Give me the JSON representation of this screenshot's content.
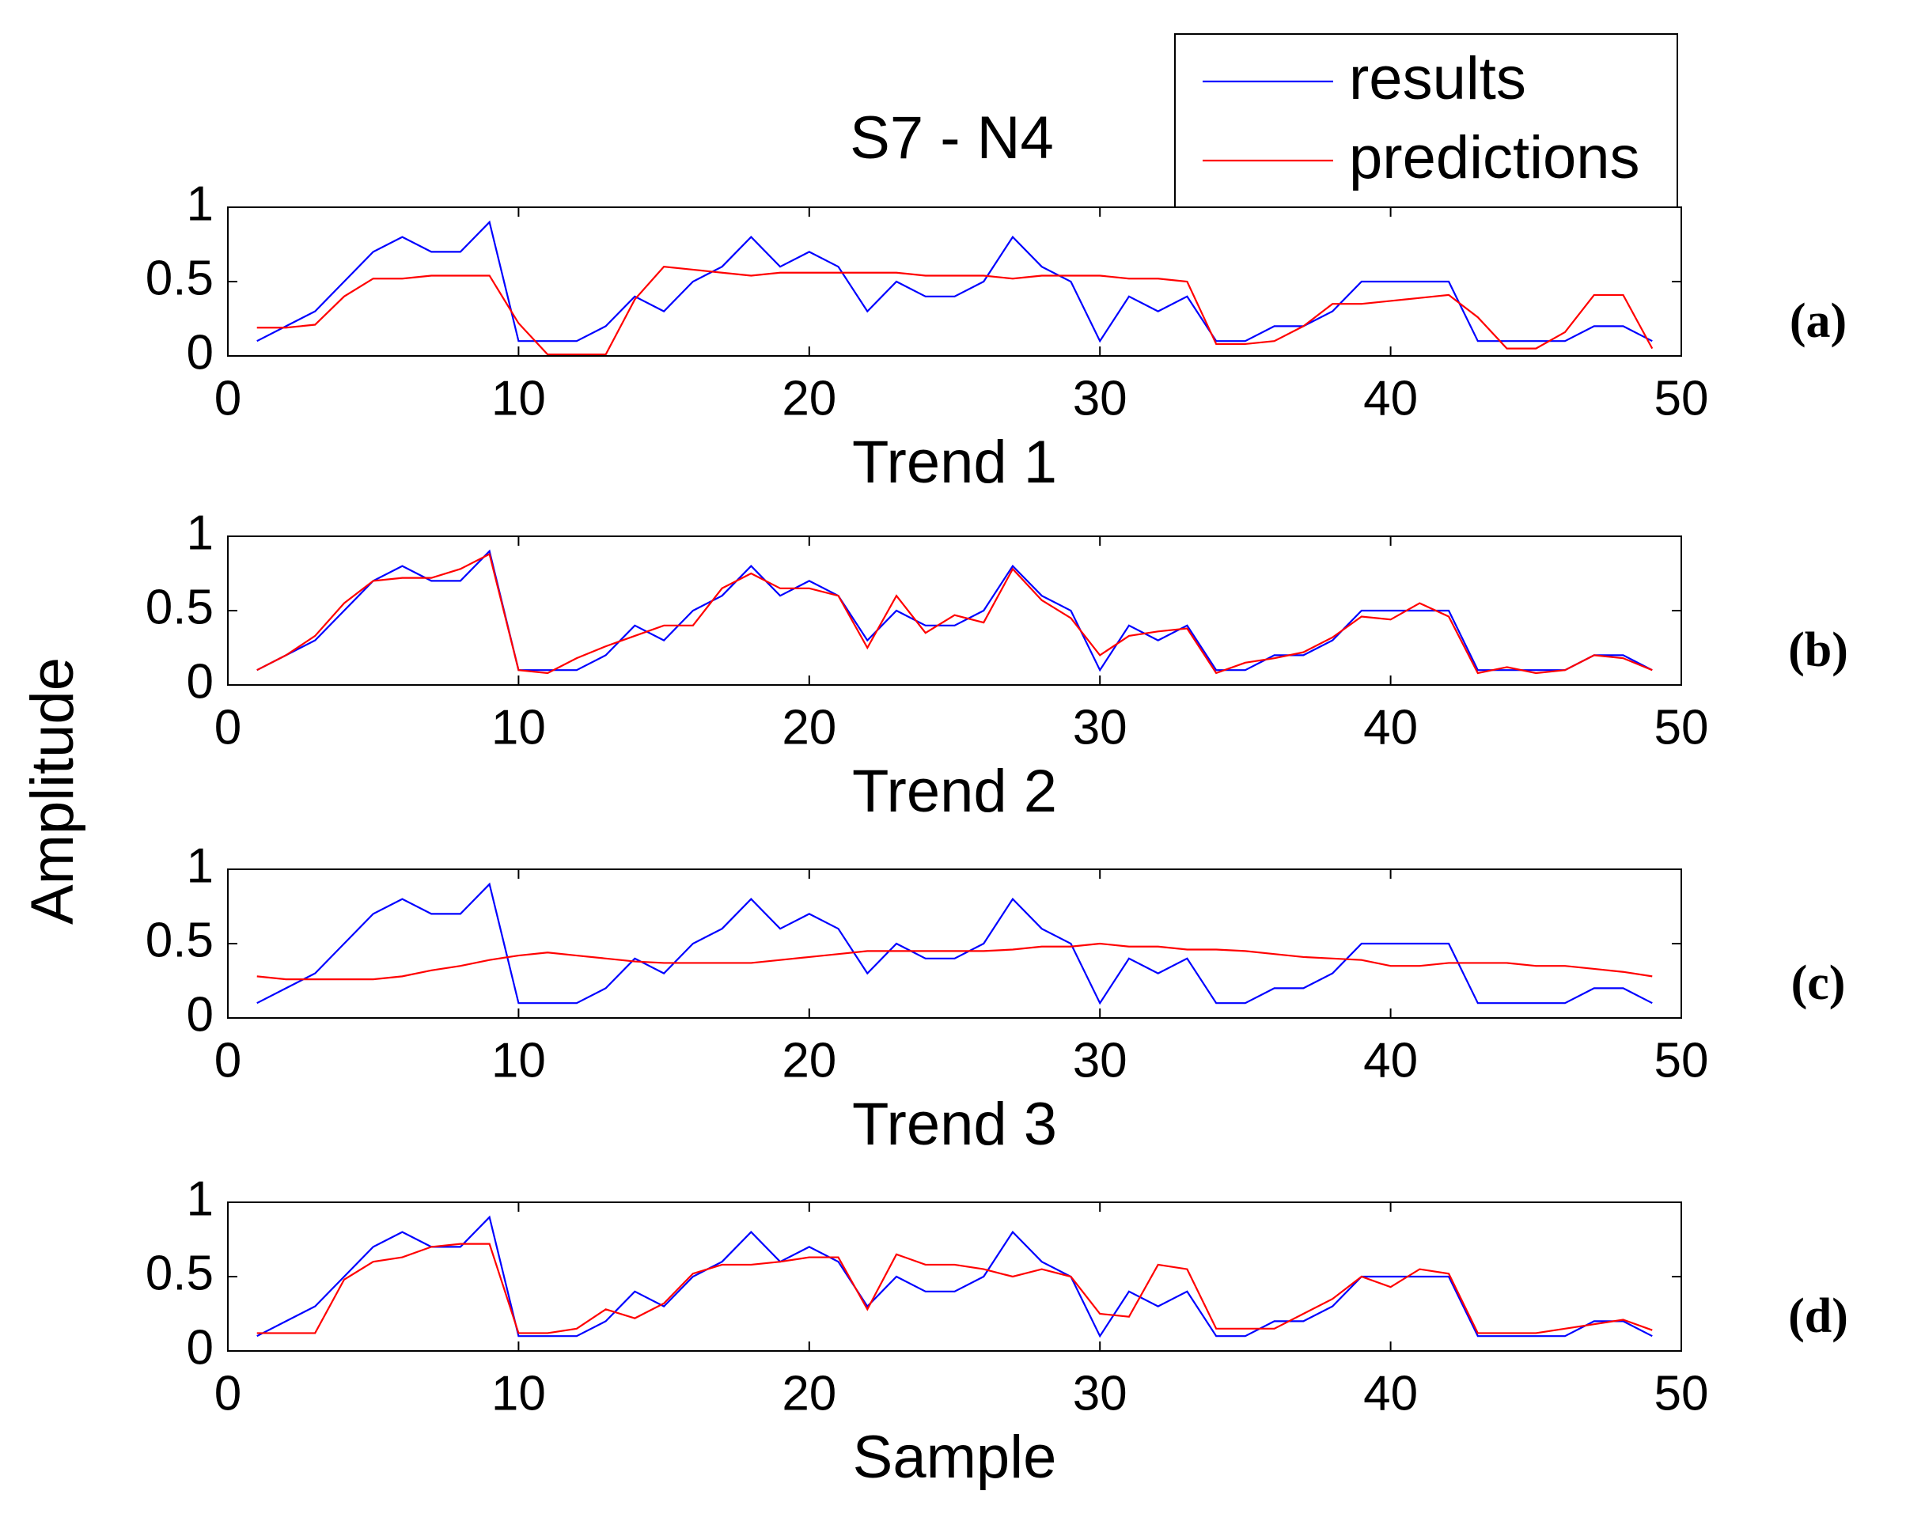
{
  "title": "S7 - N4",
  "ylabel": "Amplitude",
  "chart_data": [
    {
      "type": "line",
      "panel_label": "(a)",
      "xlabel": "Trend 1",
      "legend": "top-right",
      "grid": false,
      "x": [
        1,
        2,
        3,
        4,
        5,
        6,
        7,
        8,
        9,
        10,
        11,
        12,
        13,
        14,
        15,
        16,
        17,
        18,
        19,
        20,
        21,
        22,
        23,
        24,
        25,
        26,
        27,
        28,
        29,
        30,
        31,
        32,
        33,
        34,
        35,
        36,
        37,
        38,
        39,
        40,
        41,
        42,
        43,
        44,
        45,
        46,
        47,
        48,
        49
      ],
      "xlim": [
        0,
        50
      ],
      "xticks": [
        0,
        10,
        20,
        30,
        40,
        50
      ],
      "ylim": [
        0,
        1
      ],
      "yticks": [
        0,
        0.5,
        1
      ],
      "series": [
        {
          "name": "results",
          "color": "#0000ff",
          "values": [
            0.1,
            0.2,
            0.3,
            0.5,
            0.7,
            0.8,
            0.7,
            0.7,
            0.9,
            0.1,
            0.1,
            0.1,
            0.2,
            0.4,
            0.3,
            0.5,
            0.6,
            0.8,
            0.6,
            0.7,
            0.6,
            0.3,
            0.5,
            0.4,
            0.4,
            0.5,
            0.8,
            0.6,
            0.5,
            0.1,
            0.4,
            0.3,
            0.4,
            0.1,
            0.1,
            0.2,
            0.2,
            0.3,
            0.5,
            0.5,
            0.5,
            0.5,
            0.1,
            0.1,
            0.1,
            0.1,
            0.2,
            0.2,
            0.1
          ]
        },
        {
          "name": "predictions",
          "color": "#ff0000",
          "values": [
            0.19,
            0.19,
            0.21,
            0.4,
            0.52,
            0.52,
            0.54,
            0.54,
            0.54,
            0.22,
            0.01,
            0.01,
            0.01,
            0.38,
            0.6,
            0.58,
            0.56,
            0.54,
            0.56,
            0.56,
            0.56,
            0.56,
            0.56,
            0.54,
            0.54,
            0.54,
            0.52,
            0.54,
            0.54,
            0.54,
            0.52,
            0.52,
            0.5,
            0.08,
            0.08,
            0.1,
            0.2,
            0.35,
            0.35,
            0.37,
            0.39,
            0.41,
            0.26,
            0.05,
            0.05,
            0.16,
            0.41,
            0.41,
            0.05
          ]
        }
      ]
    },
    {
      "type": "line",
      "panel_label": "(b)",
      "xlabel": "Trend 2",
      "grid": false,
      "x": [
        1,
        2,
        3,
        4,
        5,
        6,
        7,
        8,
        9,
        10,
        11,
        12,
        13,
        14,
        15,
        16,
        17,
        18,
        19,
        20,
        21,
        22,
        23,
        24,
        25,
        26,
        27,
        28,
        29,
        30,
        31,
        32,
        33,
        34,
        35,
        36,
        37,
        38,
        39,
        40,
        41,
        42,
        43,
        44,
        45,
        46,
        47,
        48,
        49
      ],
      "xlim": [
        0,
        50
      ],
      "xticks": [
        0,
        10,
        20,
        30,
        40,
        50
      ],
      "ylim": [
        0,
        1
      ],
      "yticks": [
        0,
        0.5,
        1
      ],
      "series": [
        {
          "name": "results",
          "color": "#0000ff",
          "values": [
            0.1,
            0.2,
            0.3,
            0.5,
            0.7,
            0.8,
            0.7,
            0.7,
            0.9,
            0.1,
            0.1,
            0.1,
            0.2,
            0.4,
            0.3,
            0.5,
            0.6,
            0.8,
            0.6,
            0.7,
            0.6,
            0.3,
            0.5,
            0.4,
            0.4,
            0.5,
            0.8,
            0.6,
            0.5,
            0.1,
            0.4,
            0.3,
            0.4,
            0.1,
            0.1,
            0.2,
            0.2,
            0.3,
            0.5,
            0.5,
            0.5,
            0.5,
            0.1,
            0.1,
            0.1,
            0.1,
            0.2,
            0.2,
            0.1
          ]
        },
        {
          "name": "predictions",
          "color": "#ff0000",
          "values": [
            0.1,
            0.2,
            0.33,
            0.55,
            0.7,
            0.72,
            0.72,
            0.78,
            0.88,
            0.1,
            0.08,
            0.18,
            0.26,
            0.33,
            0.4,
            0.4,
            0.65,
            0.75,
            0.65,
            0.65,
            0.6,
            0.25,
            0.6,
            0.35,
            0.47,
            0.42,
            0.78,
            0.57,
            0.45,
            0.2,
            0.33,
            0.36,
            0.38,
            0.08,
            0.15,
            0.18,
            0.22,
            0.32,
            0.46,
            0.44,
            0.55,
            0.46,
            0.08,
            0.12,
            0.08,
            0.1,
            0.2,
            0.18,
            0.1
          ]
        }
      ]
    },
    {
      "type": "line",
      "panel_label": "(c)",
      "xlabel": "Trend 3",
      "grid": false,
      "x": [
        1,
        2,
        3,
        4,
        5,
        6,
        7,
        8,
        9,
        10,
        11,
        12,
        13,
        14,
        15,
        16,
        17,
        18,
        19,
        20,
        21,
        22,
        23,
        24,
        25,
        26,
        27,
        28,
        29,
        30,
        31,
        32,
        33,
        34,
        35,
        36,
        37,
        38,
        39,
        40,
        41,
        42,
        43,
        44,
        45,
        46,
        47,
        48,
        49
      ],
      "xlim": [
        0,
        50
      ],
      "xticks": [
        0,
        10,
        20,
        30,
        40,
        50
      ],
      "ylim": [
        0,
        1
      ],
      "yticks": [
        0,
        0.5,
        1
      ],
      "series": [
        {
          "name": "results",
          "color": "#0000ff",
          "values": [
            0.1,
            0.2,
            0.3,
            0.5,
            0.7,
            0.8,
            0.7,
            0.7,
            0.9,
            0.1,
            0.1,
            0.1,
            0.2,
            0.4,
            0.3,
            0.5,
            0.6,
            0.8,
            0.6,
            0.7,
            0.6,
            0.3,
            0.5,
            0.4,
            0.4,
            0.5,
            0.8,
            0.6,
            0.5,
            0.1,
            0.4,
            0.3,
            0.4,
            0.1,
            0.1,
            0.2,
            0.2,
            0.3,
            0.5,
            0.5,
            0.5,
            0.5,
            0.1,
            0.1,
            0.1,
            0.1,
            0.2,
            0.2,
            0.1
          ]
        },
        {
          "name": "predictions",
          "color": "#ff0000",
          "values": [
            0.28,
            0.26,
            0.26,
            0.26,
            0.26,
            0.28,
            0.32,
            0.35,
            0.39,
            0.42,
            0.44,
            0.42,
            0.4,
            0.38,
            0.37,
            0.37,
            0.37,
            0.37,
            0.39,
            0.41,
            0.43,
            0.45,
            0.45,
            0.45,
            0.45,
            0.45,
            0.46,
            0.48,
            0.48,
            0.5,
            0.48,
            0.48,
            0.46,
            0.46,
            0.45,
            0.43,
            0.41,
            0.4,
            0.39,
            0.35,
            0.35,
            0.37,
            0.37,
            0.37,
            0.35,
            0.35,
            0.33,
            0.31,
            0.28
          ]
        }
      ]
    },
    {
      "type": "line",
      "panel_label": "(d)",
      "xlabel": "Sample",
      "grid": false,
      "x": [
        1,
        2,
        3,
        4,
        5,
        6,
        7,
        8,
        9,
        10,
        11,
        12,
        13,
        14,
        15,
        16,
        17,
        18,
        19,
        20,
        21,
        22,
        23,
        24,
        25,
        26,
        27,
        28,
        29,
        30,
        31,
        32,
        33,
        34,
        35,
        36,
        37,
        38,
        39,
        40,
        41,
        42,
        43,
        44,
        45,
        46,
        47,
        48,
        49
      ],
      "xlim": [
        0,
        50
      ],
      "xticks": [
        0,
        10,
        20,
        30,
        40,
        50
      ],
      "ylim": [
        0,
        1
      ],
      "yticks": [
        0,
        0.5,
        1
      ],
      "series": [
        {
          "name": "results",
          "color": "#0000ff",
          "values": [
            0.1,
            0.2,
            0.3,
            0.5,
            0.7,
            0.8,
            0.7,
            0.7,
            0.9,
            0.1,
            0.1,
            0.1,
            0.2,
            0.4,
            0.3,
            0.5,
            0.6,
            0.8,
            0.6,
            0.7,
            0.6,
            0.3,
            0.5,
            0.4,
            0.4,
            0.5,
            0.8,
            0.6,
            0.5,
            0.1,
            0.4,
            0.3,
            0.4,
            0.1,
            0.1,
            0.2,
            0.2,
            0.3,
            0.5,
            0.5,
            0.5,
            0.5,
            0.1,
            0.1,
            0.1,
            0.1,
            0.2,
            0.2,
            0.1
          ]
        },
        {
          "name": "predictions",
          "color": "#ff0000",
          "values": [
            0.12,
            0.12,
            0.12,
            0.48,
            0.6,
            0.63,
            0.7,
            0.72,
            0.72,
            0.12,
            0.12,
            0.15,
            0.28,
            0.22,
            0.32,
            0.52,
            0.58,
            0.58,
            0.6,
            0.63,
            0.63,
            0.28,
            0.65,
            0.58,
            0.58,
            0.55,
            0.5,
            0.55,
            0.5,
            0.25,
            0.23,
            0.58,
            0.55,
            0.15,
            0.15,
            0.15,
            0.25,
            0.35,
            0.5,
            0.43,
            0.55,
            0.52,
            0.12,
            0.12,
            0.12,
            0.15,
            0.18,
            0.21,
            0.14
          ]
        }
      ]
    }
  ]
}
